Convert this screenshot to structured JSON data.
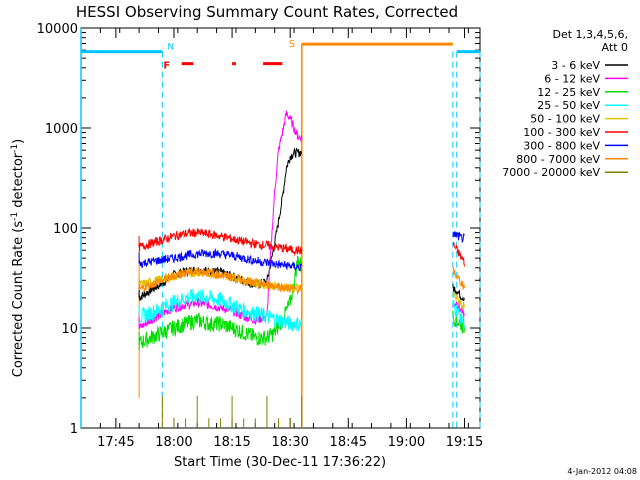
{
  "chart_data": {
    "type": "line",
    "title": "HESSI Observing Summary Count Rates, Corrected",
    "xlabel": "Start Time (30-Dec-11 17:36:22)",
    "ylabel": "Corrected Count Rate (s⁻¹ detector⁻¹)",
    "ylabel_main": "Corrected Count Rate (s",
    "ylabel_sup1": "-1",
    "ylabel_mid": " detector",
    "ylabel_sup2": "-1",
    "ylabel_end": ")",
    "footer": "4-Jan-2012 04:08",
    "yscale": "log",
    "ylim": [
      1,
      10000
    ],
    "xlim_minutes_since_1736": [
      0,
      103
    ],
    "x_ticks": [
      "17:45",
      "18:00",
      "18:15",
      "18:30",
      "18:45",
      "19:00",
      "19:15"
    ],
    "y_ticks": [
      "1",
      "10",
      "100",
      "1000",
      "10000"
    ],
    "legend": {
      "header1": "Det 1,3,4,5,6,",
      "header2": "Att 0",
      "items": [
        {
          "label": "3 - 6 keV",
          "color": "#000000"
        },
        {
          "label": "6 - 12 keV",
          "color": "#ff00ff"
        },
        {
          "label": "12 - 25 keV",
          "color": "#00dd00"
        },
        {
          "label": "25 - 50 keV",
          "color": "#00ffff"
        },
        {
          "label": "50 - 100 keV",
          "color": "#e0c000"
        },
        {
          "label": "100 - 300 keV",
          "color": "#ff0000"
        },
        {
          "label": "300 - 800 keV",
          "color": "#0000ff"
        },
        {
          "label": "800 - 7000 keV",
          "color": "#ff8800"
        },
        {
          "label": "7000 - 20000 keV",
          "color": "#808000"
        }
      ]
    },
    "flags": [
      {
        "label": "N",
        "color": "#00c8ff",
        "minutes": 21
      },
      {
        "label": "F",
        "color": "#ff0000",
        "minutes": 21
      },
      {
        "label": "S",
        "color": "#ff8800",
        "minutes": 57
      }
    ],
    "series": [
      {
        "name": "3 - 6 keV",
        "color": "#000000",
        "segments": [
          {
            "x": [
              15,
              18,
              21,
              24,
              27,
              30,
              33,
              36,
              39,
              42,
              45,
              48,
              50,
              52,
              53,
              54,
              55,
              56,
              57
            ],
            "y": [
              20,
              24,
              28,
              34,
              37,
              38,
              37,
              36,
              33,
              30,
              27,
              29,
              70,
              200,
              400,
              520,
              560,
              560,
              580
            ]
          },
          {
            "x": [
              96,
              97,
              98,
              99
            ],
            "y": [
              25,
              24,
              21,
              20
            ]
          }
        ]
      },
      {
        "name": "6 - 12 keV",
        "color": "#ff00ff",
        "segments": [
          {
            "x": [
              15,
              18,
              21,
              24,
              27,
              30,
              33,
              36,
              39,
              42,
              45,
              48,
              49,
              50,
              51,
              52,
              53,
              54,
              55,
              56,
              57
            ],
            "y": [
              10,
              12,
              14,
              16,
              17,
              18,
              17,
              16,
              15,
              13,
              12,
              13,
              60,
              230,
              600,
              900,
              1400,
              1250,
              1000,
              820,
              800
            ]
          },
          {
            "x": [
              96,
              97,
              98,
              99
            ],
            "y": [
              17,
              18,
              15,
              13
            ]
          }
        ]
      },
      {
        "name": "12 - 25 keV",
        "color": "#00dd00",
        "segments": [
          {
            "x": [
              15,
              18,
              21,
              24,
              27,
              30,
              33,
              36,
              39,
              42,
              45,
              48,
              50,
              52,
              54,
              55,
              56,
              57
            ],
            "y": [
              7,
              8,
              9,
              10,
              11,
              12,
              11,
              11,
              10,
              9,
              8,
              8,
              9,
              12,
              18,
              28,
              50,
              40
            ]
          },
          {
            "x": [
              96,
              97,
              98,
              99
            ],
            "y": [
              13,
              12,
              11,
              10
            ]
          }
        ]
      },
      {
        "name": "25 - 50 keV",
        "color": "#00ffff",
        "segments": [
          {
            "x": [
              15,
              18,
              21,
              24,
              27,
              30,
              33,
              36,
              39,
              42,
              45,
              48,
              51,
              54,
              57
            ],
            "y": [
              13,
              14,
              16,
              18,
              20,
              21,
              20,
              19,
              17,
              15,
              14,
              13,
              12,
              11,
              11
            ]
          },
          {
            "x": [
              96,
              97,
              98,
              99
            ],
            "y": [
              17,
              15,
              13,
              11
            ]
          }
        ]
      },
      {
        "name": "50 - 100 keV",
        "color": "#e0c000",
        "segments": [
          {
            "x": [
              15,
              18,
              21,
              24,
              27,
              30,
              33,
              36,
              39,
              42,
              45,
              48,
              51,
              54,
              57
            ],
            "y": [
              27,
              29,
              31,
              33,
              35,
              36,
              35,
              34,
              32,
              30,
              28,
              27,
              26,
              25,
              25
            ]
          },
          {
            "x": [
              96,
              97,
              98,
              99
            ],
            "y": [
              22,
              20,
              18,
              16
            ]
          }
        ]
      },
      {
        "name": "100 - 300 keV",
        "color": "#ff0000",
        "segments": [
          {
            "x": [
              15,
              18,
              21,
              24,
              27,
              30,
              33,
              36,
              39,
              42,
              45,
              48,
              51,
              54,
              57
            ],
            "y": [
              64,
              70,
              76,
              83,
              88,
              90,
              87,
              83,
              78,
              73,
              69,
              67,
              64,
              61,
              59
            ]
          },
          {
            "x": [
              96,
              97,
              98,
              99
            ],
            "y": [
              70,
              60,
              52,
              45
            ]
          }
        ]
      },
      {
        "name": "300 - 800 keV",
        "color": "#0000ff",
        "segments": [
          {
            "x": [
              15,
              18,
              21,
              24,
              27,
              30,
              33,
              36,
              39,
              42,
              45,
              48,
              51,
              54,
              57
            ],
            "y": [
              44,
              46,
              48,
              50,
              53,
              55,
              56,
              55,
              53,
              50,
              47,
              45,
              43,
              42,
              40
            ]
          },
          {
            "x": [
              96,
              97,
              98,
              99
            ],
            "y": [
              88,
              84,
              80,
              78
            ]
          }
        ]
      },
      {
        "name": "800 - 7000 keV",
        "color": "#ff8800",
        "segments": [
          {
            "x": [
              15,
              18,
              21,
              24,
              27,
              30,
              33,
              36,
              39,
              42,
              45,
              48,
              51,
              54,
              57
            ],
            "y": [
              24,
              27,
              30,
              33,
              36,
              37,
              36,
              34,
              32,
              30,
              28,
              27,
              26,
              25,
              24
            ]
          },
          {
            "x": [
              96,
              97,
              98,
              99
            ],
            "y": [
              38,
              33,
              29,
              26
            ]
          }
        ]
      },
      {
        "name": "7000 - 20000 keV",
        "color": "#808000",
        "segments": [
          {
            "x": [
              21,
              24,
              27,
              30,
              33,
              36,
              39,
              42,
              45,
              48,
              51,
              54,
              57
            ],
            "y": [
              1,
              1,
              1,
              1,
              1,
              1,
              1,
              1,
              1,
              1,
              1,
              1,
              1
            ]
          }
        ]
      }
    ]
  }
}
